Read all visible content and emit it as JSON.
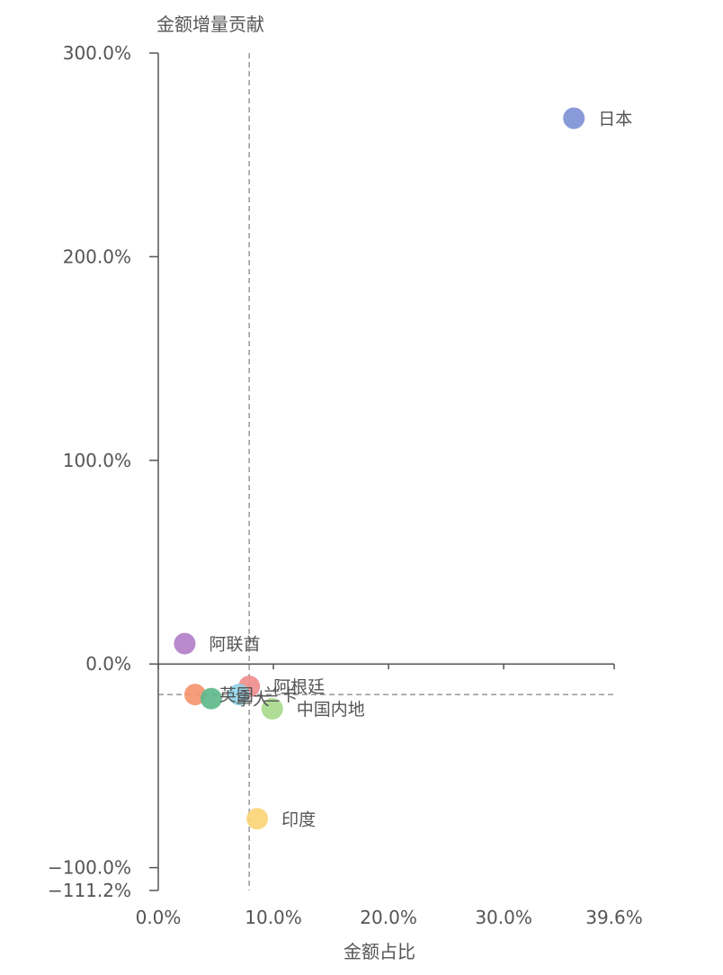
{
  "chart_data": {
    "type": "scatter",
    "title": "",
    "xlabel": "金额占比",
    "ylabel": "金额增量贡献",
    "xlim": [
      0,
      39.6
    ],
    "ylim": [
      -111.2,
      300
    ],
    "x_unit": "%",
    "y_unit": "%",
    "x_ticks": [
      "0.0%",
      "10.0%",
      "20.0%",
      "30.0%",
      "39.6%"
    ],
    "y_ticks": [
      "300.0%",
      "200.0%",
      "100.0%",
      "0.0%",
      "−100.0%",
      "−111.2%"
    ],
    "x_tick_values": [
      0,
      10,
      20,
      30,
      39.6
    ],
    "y_tick_values": [
      300,
      200,
      100,
      0,
      -100,
      -111.2
    ],
    "reference_lines": {
      "x": 7.9,
      "y": -15
    },
    "points": [
      {
        "label": "日本",
        "x": 36.1,
        "y": 268,
        "color": "#7b8fd4"
      },
      {
        "label": "阿联酋",
        "x": 2.3,
        "y": 10,
        "color": "#b07cc6"
      },
      {
        "label": "阿根廷",
        "x": 7.9,
        "y": -11,
        "color": "#ee8c8c"
      },
      {
        "label": "英国",
        "x": 3.2,
        "y": -15,
        "color": "#f4936a"
      },
      {
        "label": "拿大",
        "x": 4.6,
        "y": -17,
        "color": "#5cb88a"
      },
      {
        "label": "兰卡",
        "x": 7.0,
        "y": -15,
        "color": "#8fd3e8"
      },
      {
        "label": "中国内地",
        "x": 9.9,
        "y": -22,
        "color": "#a6d98a"
      },
      {
        "label": "印度",
        "x": 8.6,
        "y": -76,
        "color": "#fcd374"
      }
    ]
  }
}
